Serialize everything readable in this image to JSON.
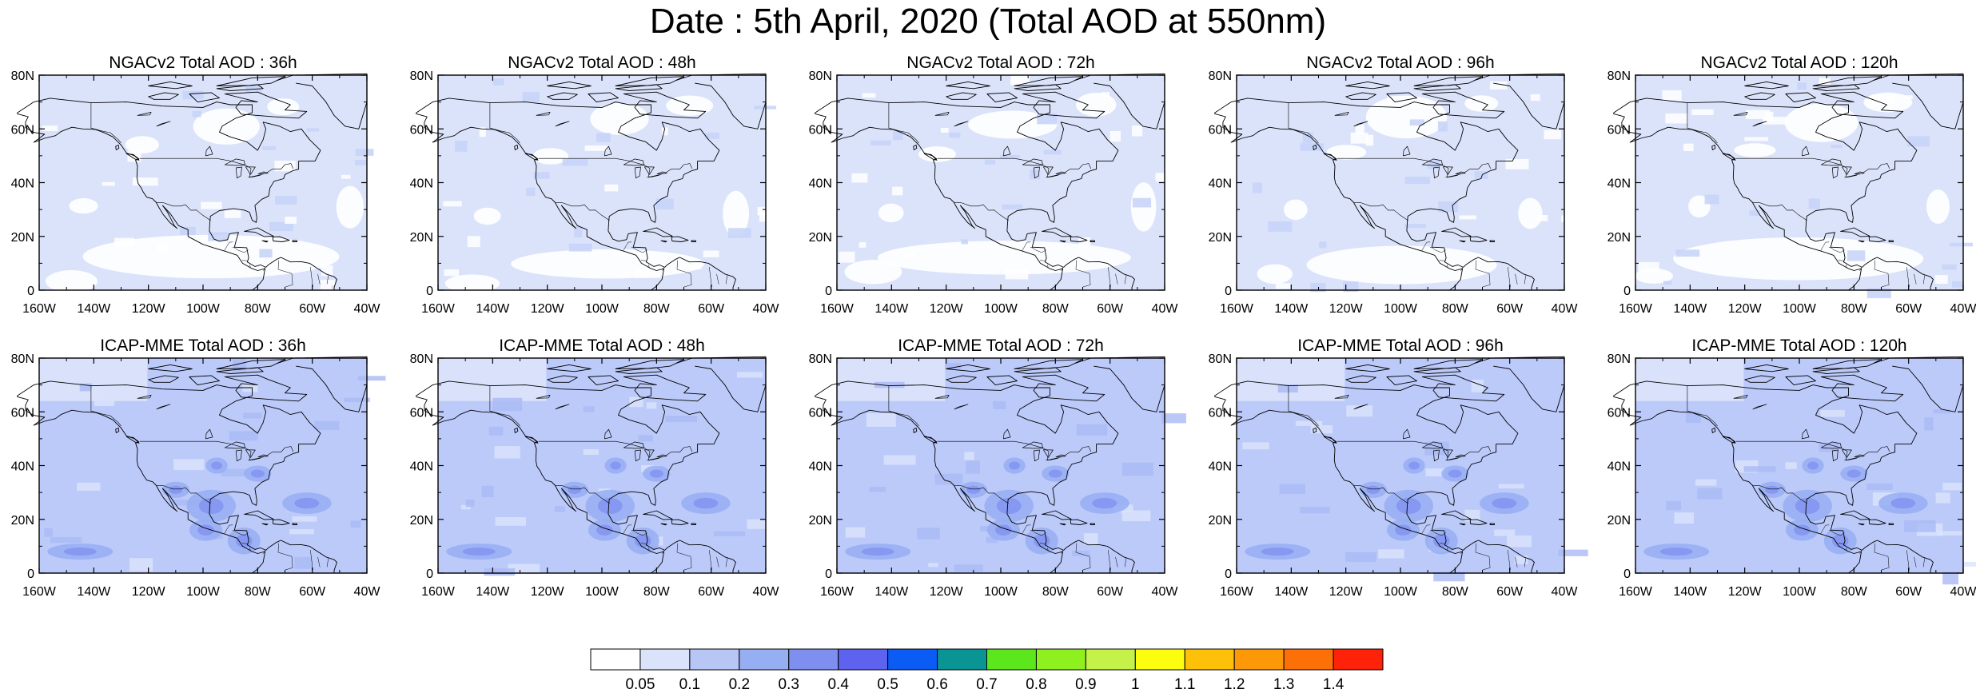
{
  "title": "Date : 5th April, 2020 (Total AOD at 550nm)",
  "lat_labels": [
    "80N",
    "60N",
    "40N",
    "20N",
    "0"
  ],
  "lon_labels": [
    "160W",
    "140W",
    "120W",
    "100W",
    "80W",
    "60W",
    "40W"
  ],
  "rows": [
    {
      "model": "NGACv2",
      "background_color": "#dbe3fb",
      "panels": [
        {
          "title": "NGACv2 Total AOD : 36h",
          "forecast_hour": 36
        },
        {
          "title": "NGACv2 Total AOD : 48h",
          "forecast_hour": 48
        },
        {
          "title": "NGACv2 Total AOD : 72h",
          "forecast_hour": 72
        },
        {
          "title": "NGACv2 Total AOD : 96h",
          "forecast_hour": 96
        },
        {
          "title": "NGACv2 Total AOD : 120h",
          "forecast_hour": 120
        }
      ]
    },
    {
      "model": "ICAP-MME",
      "background_color": "#bccafa",
      "panels": [
        {
          "title": "ICAP-MME Total AOD : 36h",
          "forecast_hour": 36
        },
        {
          "title": "ICAP-MME Total AOD : 48h",
          "forecast_hour": 48
        },
        {
          "title": "ICAP-MME Total AOD : 72h",
          "forecast_hour": 72
        },
        {
          "title": "ICAP-MME Total AOD : 96h",
          "forecast_hour": 96
        },
        {
          "title": "ICAP-MME Total AOD : 120h",
          "forecast_hour": 120
        }
      ]
    }
  ],
  "colorbar": {
    "labels": [
      "0.05",
      "0.1",
      "0.2",
      "0.3",
      "0.4",
      "0.5",
      "0.6",
      "0.7",
      "0.8",
      "0.9",
      "1",
      "1.1",
      "1.2",
      "1.3",
      "1.4"
    ],
    "colors": [
      "#ffffff",
      "#dbe3fb",
      "#b8c6f6",
      "#96aef2",
      "#7f8ff0",
      "#5d63ee",
      "#0b5cf4",
      "#0a9494",
      "#5ce61c",
      "#8ef01e",
      "#c4f248",
      "#fdfd10",
      "#fdc109",
      "#fd9808",
      "#fd7008",
      "#fd2208"
    ]
  }
}
